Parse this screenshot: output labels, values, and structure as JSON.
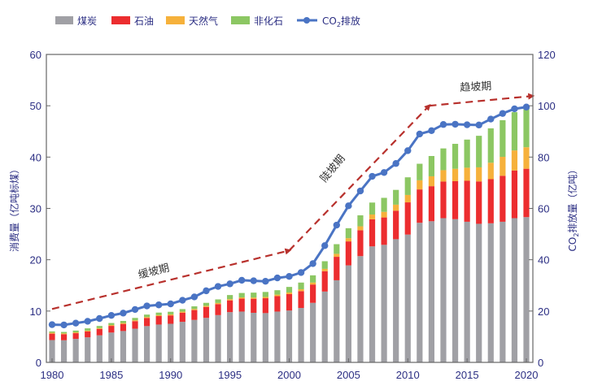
{
  "chart_data": {
    "type": "bar",
    "stacked": true,
    "x": [
      1980,
      1981,
      1982,
      1983,
      1984,
      1985,
      1986,
      1987,
      1988,
      1989,
      1990,
      1991,
      1992,
      1993,
      1994,
      1995,
      1996,
      1997,
      1998,
      1999,
      2000,
      2001,
      2002,
      2003,
      2004,
      2005,
      2006,
      2007,
      2008,
      2009,
      2010,
      2011,
      2012,
      2013,
      2014,
      2015,
      2016,
      2017,
      2018,
      2019,
      2020
    ],
    "xticks": [
      "1980",
      "1985",
      "1990",
      "1995",
      "2000",
      "2005",
      "2010",
      "2015",
      "2020"
    ],
    "xlim": [
      1980,
      2020
    ],
    "ylabel": "消费量（亿吨标煤）",
    "ylim": [
      0,
      60
    ],
    "yticks": [
      "0",
      "10",
      "20",
      "30",
      "40",
      "50",
      "60"
    ],
    "y2label_prefix": "CO",
    "y2label_sub": "2",
    "y2label_suffix": "排放量（亿吨）",
    "y2lim": [
      0,
      120
    ],
    "y2ticks": [
      "0",
      "20",
      "40",
      "60",
      "80",
      "100",
      "120"
    ],
    "grid": false,
    "legend_position": "top",
    "series": [
      {
        "name": "煤炭",
        "color": "#a0a0a5",
        "axis": "left",
        "kind": "bar",
        "values": [
          4.35,
          4.31,
          4.57,
          4.88,
          5.27,
          5.81,
          6.11,
          6.56,
          7.07,
          7.37,
          7.52,
          7.9,
          8.27,
          8.67,
          9.21,
          9.79,
          9.9,
          9.66,
          9.6,
          9.9,
          10.1,
          10.6,
          11.6,
          13.8,
          16.0,
          18.9,
          20.7,
          22.6,
          22.9,
          24.0,
          24.9,
          27.2,
          27.5,
          28.1,
          27.9,
          27.4,
          27.0,
          27.1,
          27.4,
          28.1,
          28.3
        ]
      },
      {
        "name": "石油",
        "color": "#ec2d2f",
        "axis": "left",
        "kind": "bar",
        "values": [
          1.25,
          1.18,
          1.12,
          1.15,
          1.24,
          1.3,
          1.38,
          1.47,
          1.58,
          1.65,
          1.63,
          1.78,
          1.92,
          2.14,
          2.14,
          2.29,
          2.52,
          2.74,
          2.9,
          3.0,
          3.2,
          3.28,
          3.57,
          3.97,
          4.57,
          4.67,
          5.04,
          5.28,
          5.34,
          5.55,
          6.28,
          6.5,
          6.83,
          7.14,
          7.41,
          7.99,
          8.26,
          8.6,
          8.96,
          9.28,
          9.43
        ]
      },
      {
        "name": "天然气",
        "color": "#f6b13b",
        "axis": "left",
        "kind": "bar",
        "values": [
          0.19,
          0.17,
          0.16,
          0.16,
          0.17,
          0.17,
          0.18,
          0.18,
          0.19,
          0.2,
          0.2,
          0.21,
          0.21,
          0.22,
          0.23,
          0.24,
          0.24,
          0.24,
          0.25,
          0.3,
          0.32,
          0.37,
          0.39,
          0.45,
          0.58,
          0.63,
          0.77,
          0.93,
          1.09,
          1.18,
          1.44,
          1.78,
          1.93,
          2.21,
          2.41,
          2.54,
          2.74,
          3.2,
          3.69,
          3.92,
          4.19
        ]
      },
      {
        "name": "非化石",
        "color": "#8cc763",
        "axis": "left",
        "kind": "bar",
        "values": [
          0.24,
          0.27,
          0.35,
          0.44,
          0.41,
          0.39,
          0.4,
          0.45,
          0.47,
          0.48,
          0.51,
          0.49,
          0.52,
          0.57,
          0.69,
          0.8,
          0.86,
          0.95,
          0.97,
          0.86,
          1.08,
          1.3,
          1.4,
          1.49,
          1.88,
          1.94,
          2.14,
          2.33,
          2.73,
          2.88,
          3.44,
          3.22,
          3.95,
          4.24,
          4.86,
          5.48,
          6.15,
          6.7,
          7.14,
          7.45,
          7.91
        ]
      },
      {
        "name_prefix": "CO",
        "name_sub": "2",
        "name_suffix": "排放",
        "color": "#4a74c4",
        "axis": "right",
        "kind": "line",
        "values": [
          14.7,
          14.6,
          15.3,
          16.0,
          17.1,
          18.3,
          19.2,
          20.6,
          22.0,
          22.4,
          22.8,
          24.2,
          25.5,
          27.9,
          29.6,
          30.6,
          32.0,
          31.8,
          31.6,
          32.9,
          33.5,
          35.0,
          38.5,
          45.5,
          53.5,
          61.0,
          66.8,
          72.5,
          74.0,
          77.5,
          82.5,
          89.0,
          90.3,
          92.7,
          92.8,
          92.6,
          92.5,
          94.8,
          97.0,
          98.8,
          99.5
        ]
      }
    ],
    "annotations": [
      {
        "text": "缓坡期",
        "from": [
          1980,
          10.4
        ],
        "to": [
          2000,
          21.8
        ]
      },
      {
        "text": "陡坡期",
        "from": [
          2000,
          21.8
        ],
        "to": [
          2011.8,
          50
        ]
      },
      {
        "text": "趋坡期",
        "from": [
          2011.8,
          50
        ],
        "to": [
          2020.5,
          51.9
        ]
      }
    ],
    "annotation_color": "#b8312d"
  }
}
